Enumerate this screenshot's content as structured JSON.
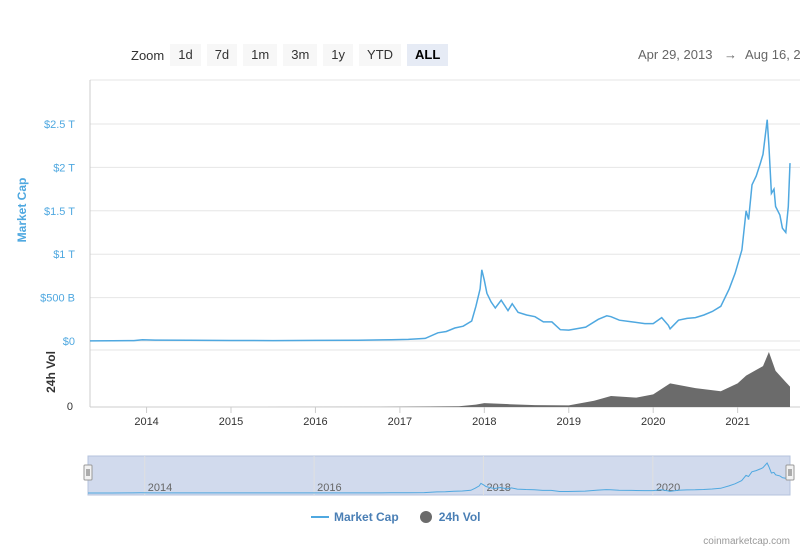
{
  "zoom": {
    "label": "Zoom",
    "buttons": [
      "1d",
      "7d",
      "1m",
      "3m",
      "1y",
      "YTD",
      "ALL"
    ],
    "active": "ALL"
  },
  "range": {
    "from": "Apr 29, 2013",
    "arrow": "→",
    "to": "Aug 16, 2"
  },
  "colors": {
    "marketcap": "#4fa8e0",
    "volume": "#6b6b6b",
    "navigator_bg": "#ccd6eb"
  },
  "legend": {
    "marketcap": "Market Cap",
    "volume": "24h Vol"
  },
  "credit": "coinmarketcap.com",
  "chart_data": {
    "type": "line",
    "ylabel": "Market Cap",
    "vol_label": "24h Vol",
    "y_ticks": [
      "$0",
      "$500 B",
      "$1 T",
      "$1.5 T",
      "$2 T",
      "$2.5 T"
    ],
    "y_tick_values": [
      0,
      500,
      1000,
      1500,
      2000,
      2500
    ],
    "vol_ticks": [
      "0"
    ],
    "x_ticks": [
      "2014",
      "2015",
      "2016",
      "2017",
      "2018",
      "2019",
      "2020",
      "2021"
    ],
    "x_tick_values": [
      2014,
      2015,
      2016,
      2017,
      2018,
      2019,
      2020,
      2021
    ],
    "navigator_ticks": [
      "2014",
      "2016",
      "2018",
      "2020"
    ],
    "navigator_tick_values": [
      2014,
      2016,
      2018,
      2020
    ],
    "xlim": [
      2013.33,
      2021.62
    ],
    "ylim": [
      0,
      2600
    ],
    "series": [
      {
        "name": "Market Cap",
        "unit": "billion USD",
        "x": [
          2013.33,
          2013.6,
          2013.85,
          2013.95,
          2014.1,
          2014.5,
          2015.0,
          2015.5,
          2016.0,
          2016.5,
          2016.9,
          2017.1,
          2017.3,
          2017.45,
          2017.55,
          2017.65,
          2017.75,
          2017.85,
          2017.9,
          2017.95,
          2017.97,
          2018.0,
          2018.03,
          2018.08,
          2018.13,
          2018.2,
          2018.28,
          2018.33,
          2018.4,
          2018.5,
          2018.6,
          2018.7,
          2018.8,
          2018.9,
          2019.0,
          2019.2,
          2019.35,
          2019.45,
          2019.5,
          2019.6,
          2019.75,
          2019.9,
          2020.0,
          2020.1,
          2020.18,
          2020.2,
          2020.3,
          2020.4,
          2020.5,
          2020.6,
          2020.7,
          2020.8,
          2020.9,
          2020.97,
          2021.05,
          2021.1,
          2021.13,
          2021.17,
          2021.22,
          2021.27,
          2021.3,
          2021.35,
          2021.37,
          2021.4,
          2021.43,
          2021.45,
          2021.5,
          2021.53,
          2021.57,
          2021.6,
          2021.62
        ],
        "values": [
          1.5,
          2,
          5,
          14,
          10,
          8,
          6,
          5,
          7,
          9,
          14,
          18,
          30,
          95,
          110,
          150,
          170,
          230,
          400,
          600,
          820,
          700,
          550,
          450,
          380,
          470,
          350,
          430,
          330,
          300,
          280,
          220,
          220,
          130,
          125,
          160,
          250,
          290,
          280,
          240,
          220,
          200,
          200,
          270,
          180,
          140,
          240,
          260,
          270,
          300,
          340,
          400,
          600,
          780,
          1050,
          1500,
          1400,
          1800,
          1900,
          2050,
          2150,
          2550,
          2250,
          1700,
          1750,
          1550,
          1450,
          1300,
          1250,
          1550,
          2050
        ]
      },
      {
        "name": "24h Vol",
        "unit": "billion USD",
        "x": [
          2013.33,
          2015.0,
          2017.0,
          2017.7,
          2017.9,
          2018.0,
          2018.3,
          2018.6,
          2019.0,
          2019.3,
          2019.5,
          2019.8,
          2020.0,
          2020.2,
          2020.5,
          2020.8,
          2021.0,
          2021.1,
          2021.2,
          2021.3,
          2021.37,
          2021.45,
          2021.55,
          2021.62
        ],
        "values": [
          0,
          0,
          1,
          5,
          15,
          25,
          18,
          12,
          10,
          40,
          70,
          60,
          80,
          150,
          120,
          100,
          150,
          200,
          230,
          260,
          350,
          230,
          170,
          130
        ]
      }
    ]
  }
}
